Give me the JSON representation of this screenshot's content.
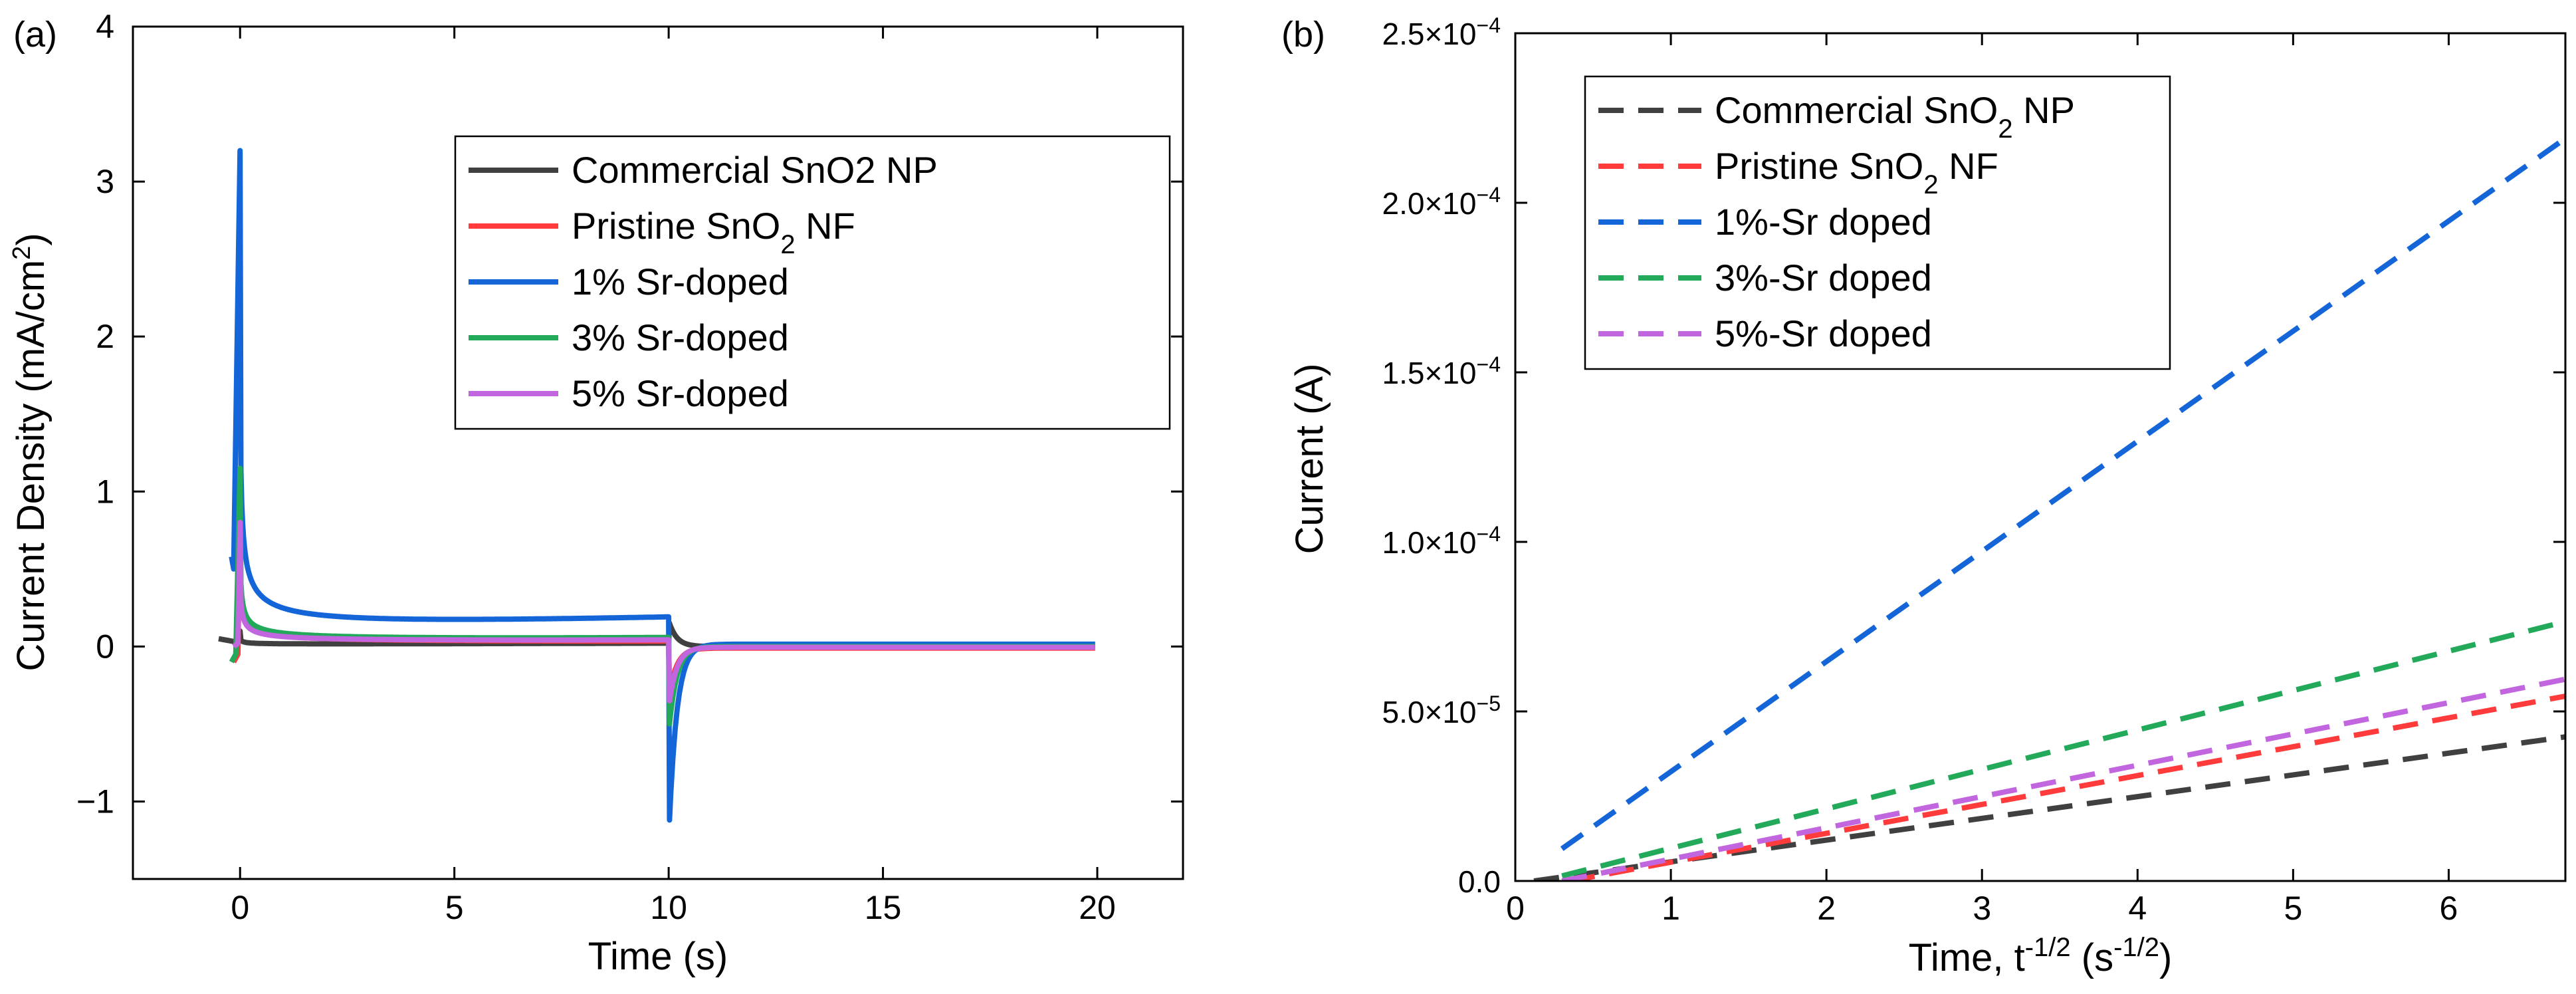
{
  "chart_data": [
    {
      "panel_label": "(a)",
      "type": "line",
      "xlabel": "Time (s)",
      "ylabel": "Current Density (mA/cm²)",
      "ylabel_sup": "2",
      "xlim": [
        -2.5,
        22
      ],
      "ylim": [
        -1.5,
        4
      ],
      "xticks": [
        0,
        5,
        10,
        15,
        20
      ],
      "xtick_labels": [
        "0",
        "5",
        "10",
        "15",
        "20"
      ],
      "yticks": [
        -1,
        0,
        1,
        2,
        3,
        4
      ],
      "ytick_labels": [
        "−1",
        "0",
        "1",
        "2",
        "3",
        "4"
      ],
      "grid": false,
      "legend_position": "top-right",
      "series": [
        {
          "name": "Commercial SnO2 NP",
          "label_main": "Commercial SnO2 NP",
          "label_sub": "",
          "label_tail": "",
          "color": "#404040",
          "peak": 0.1,
          "base": 0.012,
          "tail": 0.02,
          "reverse_peak": 0.15,
          "reverse_base": -0.01,
          "reverse_tail": 0.0,
          "pre": [
            [
              -0.5,
              0.05
            ],
            [
              -0.3,
              0.04
            ],
            [
              -0.1,
              0.03
            ]
          ]
        },
        {
          "name": "Pristine SnO2 NF",
          "label_main": "Pristine SnO",
          "label_sub": "2",
          "label_tail": " NF",
          "color": "#ff3b3b",
          "peak": 0.9,
          "base": 0.015,
          "tail": 0.02,
          "reverse_peak": -0.3,
          "reverse_base": -0.01,
          "reverse_tail": -0.01,
          "pre": [
            [
              -0.15,
              -0.1
            ],
            [
              -0.05,
              -0.05
            ]
          ]
        },
        {
          "name": "1% Sr-doped",
          "label_main": "1% Sr-doped",
          "label_sub": "",
          "label_tail": "",
          "color": "#1466d8",
          "peak": 3.2,
          "base": 0.06,
          "tail": 0.14,
          "reverse_peak": -1.12,
          "reverse_base": 0.015,
          "reverse_tail": 0.015,
          "pre": [
            [
              -0.2,
              0.58
            ],
            [
              -0.15,
              0.5
            ]
          ]
        },
        {
          "name": "3% Sr-doped",
          "label_main": "3% Sr-doped",
          "label_sub": "",
          "label_tail": "",
          "color": "#22a95a",
          "peak": 1.15,
          "base": 0.02,
          "tail": 0.04,
          "reverse_peak": -0.5,
          "reverse_base": -0.005,
          "reverse_tail": 0.0,
          "pre": [
            [
              -0.2,
              -0.1
            ],
            [
              -0.1,
              -0.05
            ]
          ]
        },
        {
          "name": "5% Sr-doped",
          "label_main": "5% Sr-doped",
          "label_sub": "",
          "label_tail": "",
          "color": "#c266e0",
          "peak": 0.8,
          "base": 0.018,
          "tail": 0.03,
          "reverse_peak": -0.35,
          "reverse_base": -0.01,
          "reverse_tail": -0.005,
          "pre": [
            [
              -0.15,
              0.0
            ],
            [
              -0.05,
              0.02
            ]
          ]
        }
      ]
    },
    {
      "panel_label": "(b)",
      "type": "line",
      "xlabel": "Time, t",
      "xlabel_sup": "-1/2",
      "xlabel_tail": " (s",
      "xlabel_sup2": "-1/2",
      "xlabel_end": ")",
      "ylabel": "Current (A)",
      "xlim": [
        0,
        6.75
      ],
      "ylim": [
        0,
        0.00025
      ],
      "xticks": [
        0,
        1,
        2,
        3,
        4,
        5,
        6
      ],
      "xtick_labels": [
        "0",
        "1",
        "2",
        "3",
        "4",
        "5",
        "6"
      ],
      "yticks": [
        0,
        5e-05,
        0.0001,
        0.00015,
        0.0002,
        0.00025
      ],
      "ytick_labels": [
        "0.0",
        "5.0×10",
        "1.0×10",
        "1.5×10",
        "2.0×10",
        "2.5×10"
      ],
      "ytick_exponents": [
        "",
        "−5",
        "−4",
        "−4",
        "−4",
        "−4"
      ],
      "grid": false,
      "legend_position": "top-left",
      "line_style": "dashed",
      "series": [
        {
          "name": "Commercial SnO2 NP",
          "label_main": "Commercial SnO",
          "label_sub": "2",
          "label_tail": " NP",
          "color": "#404040",
          "x": [
            0.12,
            6.75
          ],
          "y": [
            0.0,
            4.25e-05
          ]
        },
        {
          "name": "Pristine SnO2 NF",
          "label_main": "Pristine SnO",
          "label_sub": "2",
          "label_tail": " NF",
          "color": "#ff3b3b",
          "x": [
            0.35,
            6.75
          ],
          "y": [
            0.0,
            5.45e-05
          ]
        },
        {
          "name": "1%-Sr doped",
          "label_main": "1%-Sr doped",
          "label_sub": "",
          "label_tail": "",
          "color": "#1466d8",
          "x": [
            0.3,
            6.75
          ],
          "y": [
            9.5e-06,
            0.000219
          ]
        },
        {
          "name": "3%-Sr doped",
          "label_main": "3%-Sr doped",
          "label_sub": "",
          "label_tail": "",
          "color": "#22a95a",
          "x": [
            0.3,
            6.75
          ],
          "y": [
            1.5e-06,
            7.65e-05
          ]
        },
        {
          "name": "5%-Sr doped",
          "label_main": "5%-Sr doped",
          "label_sub": "",
          "label_tail": "",
          "color": "#c266e0",
          "x": [
            0.3,
            6.75
          ],
          "y": [
            0.0,
            5.95e-05
          ]
        }
      ]
    }
  ]
}
